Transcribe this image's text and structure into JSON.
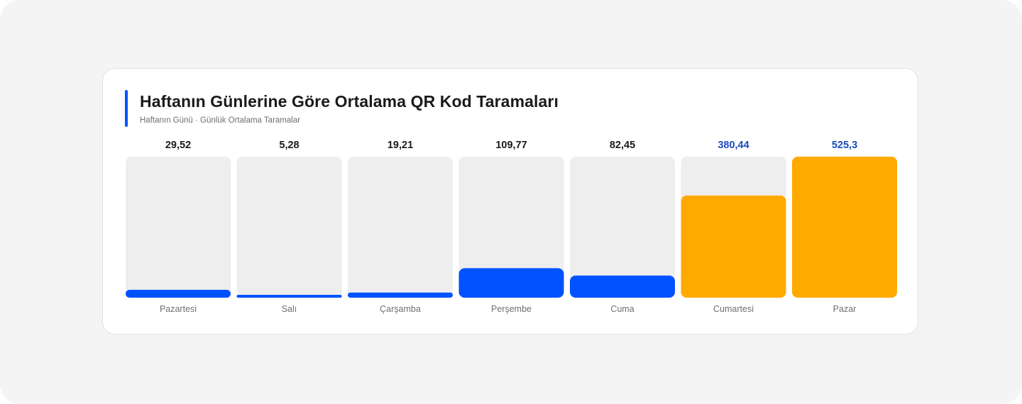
{
  "header": {
    "title": "Haftanın Günlerine Göre Ortalama QR Kod Taramaları",
    "subtitle": "Haftanın Günü · Günlük Ortalama Taramalar"
  },
  "colors": {
    "accent": "#0052ff",
    "highlight": "#ffaa00",
    "highlight_label": "#1c4bb8",
    "track": "#eeeeee",
    "value_text": "#1a1a1a",
    "category_text": "#707070"
  },
  "chart_data": {
    "type": "bar",
    "title": "Haftanın Günlerine Göre Ortalama QR Kod Taramaları",
    "subtitle": "Haftanın Günü · Günlük Ortalama Taramalar",
    "xlabel": "",
    "ylabel": "",
    "categories": [
      "Pazartesi",
      "Salı",
      "Çarşamba",
      "Perşembe",
      "Cuma",
      "Cumartesi",
      "Pazar"
    ],
    "values": [
      29.52,
      5.28,
      19.21,
      109.77,
      82.45,
      380.44,
      525.3
    ],
    "value_labels": [
      "29,52",
      "5,28",
      "19,21",
      "109,77",
      "82,45",
      "380,44",
      "525,3"
    ],
    "highlighted": [
      false,
      false,
      false,
      false,
      false,
      true,
      true
    ],
    "ylim": [
      0,
      525.3
    ],
    "grid": false,
    "legend": "none"
  }
}
